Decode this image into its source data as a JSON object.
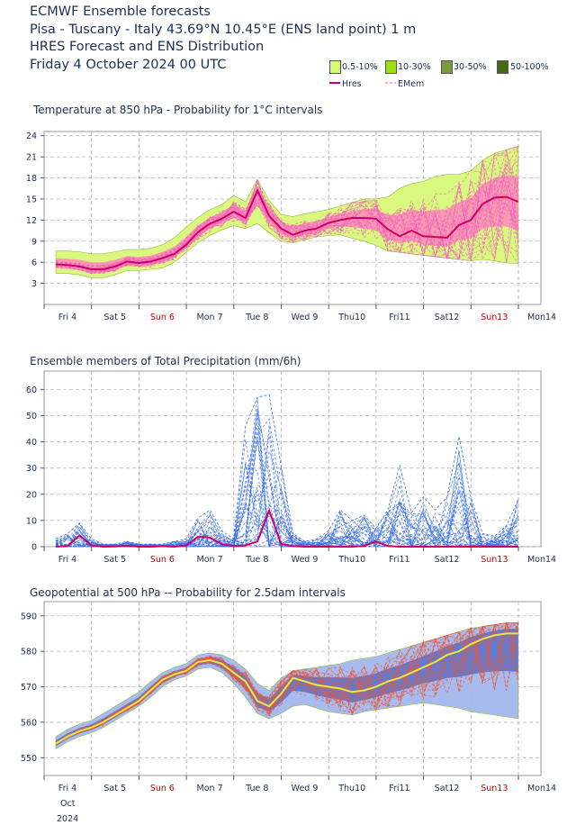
{
  "header": {
    "line1": "ECMWF Ensemble forecasts",
    "line2": "Pisa - Tuscany - Italy 43.69°N 10.45°E (ENS land point) 1 m",
    "line3": "HRES Forecast and ENS Distribution",
    "line4": "Friday  4 October 2024 00 UTC"
  },
  "legend": {
    "boxes": [
      {
        "label": "0.5-10%",
        "color": "#d9f77a"
      },
      {
        "label": "10-30%",
        "color": "#9ae010"
      },
      {
        "label": "30-50%",
        "color": "#7a9a3a"
      },
      {
        "label": "50-100%",
        "color": "#4a6a10"
      }
    ],
    "hres_label": "Hres",
    "emem_label": "EMem",
    "hres_color": "#cc0066",
    "emem_color": "#ff6a6a"
  },
  "x_axis": {
    "ticks": [
      "Fri 4",
      "Sat 5",
      "Sun 6",
      "Mon 7",
      "Tue 8",
      "Wed 9",
      "Thu10",
      "Fri11",
      "Sat12",
      "Sun13",
      "Mon14"
    ],
    "weekend_ticks": [
      "Sun 6",
      "Sun13"
    ],
    "weekend_color": "#cc0000",
    "month_label": "Oct",
    "year_label": "2024"
  },
  "chart_data": [
    {
      "type": "area",
      "title": "Temperature at 850 hPa - Probability for 1°C intervals",
      "ylim": [
        0,
        24.6
      ],
      "yticks": [
        3,
        6,
        9,
        12,
        15,
        18,
        21,
        24
      ],
      "grid": true,
      "colors": {
        "outer": "#d9f77a",
        "inner": "#ff88bb",
        "hres": "#cc0066",
        "members": "#ee66bb"
      },
      "x_days": [
        0,
        0.25,
        0.5,
        0.75,
        1,
        1.25,
        1.5,
        1.75,
        2,
        2.25,
        2.5,
        2.75,
        3,
        3.25,
        3.5,
        3.75,
        4,
        4.25,
        4.5,
        4.75,
        5,
        5.25,
        5.5,
        5.75,
        6,
        6.25,
        6.5,
        6.75,
        7,
        7.25,
        7.5,
        7.75,
        8,
        8.25,
        8.5,
        8.75,
        9,
        9.25,
        9.5,
        9.75
      ],
      "hres": [
        5.7,
        5.6,
        5.4,
        5.0,
        5.0,
        5.4,
        6.1,
        5.9,
        6.1,
        6.6,
        7.2,
        8.5,
        10.3,
        11.5,
        12.2,
        13.2,
        12.3,
        16.2,
        12.6,
        10.8,
        9.9,
        10.5,
        10.8,
        11.6,
        12.0,
        12.3,
        12.3,
        12.2,
        10.7,
        9.7,
        10.5,
        9.7,
        9.6,
        9.5,
        11.3,
        12.0,
        14.3,
        15.2,
        15.3,
        14.6
      ],
      "band_low": [
        4.4,
        4.4,
        4.2,
        3.8,
        3.8,
        4.2,
        4.8,
        4.8,
        5.0,
        5.2,
        6.0,
        7.4,
        8.8,
        9.8,
        10.6,
        11.2,
        10.8,
        11.5,
        10.2,
        9.0,
        8.8,
        9.2,
        9.6,
        9.8,
        9.9,
        9.4,
        9.0,
        8.4,
        7.6,
        7.4,
        7.2,
        7.0,
        6.8,
        6.6,
        6.4,
        6.2,
        6.4,
        6.2,
        5.9,
        5.8
      ],
      "band_high": [
        7.6,
        7.6,
        7.5,
        7.2,
        7.2,
        7.5,
        7.8,
        7.8,
        8.0,
        8.5,
        9.5,
        11.0,
        12.4,
        13.5,
        14.2,
        15.5,
        14.6,
        17.8,
        14.8,
        12.8,
        12.5,
        12.9,
        13.2,
        13.5,
        14.0,
        14.5,
        15.0,
        15.0,
        15.3,
        16.5,
        17.2,
        17.5,
        18.2,
        18.5,
        18.5,
        19.0,
        20.5,
        21.5,
        22.0,
        22.5
      ]
    },
    {
      "type": "line",
      "title": "Ensemble members of Total Precipitation (mm/6h)",
      "ylim": [
        0,
        67
      ],
      "yticks": [
        0,
        10,
        20,
        30,
        40,
        50,
        60
      ],
      "grid": true,
      "colors": {
        "hres": "#cc0066",
        "members": "#3a6ee8"
      },
      "x_days": [
        0,
        0.25,
        0.5,
        0.75,
        1,
        1.25,
        1.5,
        1.75,
        2,
        2.25,
        2.5,
        2.75,
        3,
        3.25,
        3.5,
        3.75,
        4,
        4.25,
        4.5,
        4.75,
        5,
        5.25,
        5.5,
        5.75,
        6,
        6.25,
        6.5,
        6.75,
        7,
        7.25,
        7.5,
        7.75,
        8,
        8.25,
        8.5,
        8.75,
        9,
        9.25,
        9.5,
        9.75
      ],
      "hres": [
        0.0,
        0.3,
        4.3,
        0.5,
        0.0,
        0.1,
        0.4,
        0.0,
        0.0,
        0.2,
        0.0,
        0.5,
        3.8,
        3.5,
        1.0,
        0.2,
        0.5,
        2.0,
        13.8,
        1.0,
        0.2,
        0.0,
        0.0,
        0.0,
        0.0,
        0.0,
        0.3,
        2.0,
        0.3,
        0.0,
        0.0,
        0.0,
        0.0,
        0.0,
        0.0,
        0.0,
        0.0,
        0.0,
        0.0,
        0.0
      ],
      "members_max": [
        3,
        5,
        9,
        3,
        1,
        1,
        2,
        1,
        1,
        1,
        2,
        3,
        11,
        14,
        6,
        3,
        46,
        57,
        58,
        31,
        5,
        2,
        3,
        6,
        14,
        10,
        12,
        7,
        14,
        31,
        13,
        19,
        14,
        19,
        42,
        19,
        5,
        4,
        8,
        18
      ]
    },
    {
      "type": "area",
      "title": "Geopotential at 500 hPa -- Probability for 2.5dam intervals",
      "ylim": [
        545,
        594
      ],
      "yticks": [
        550,
        560,
        570,
        580,
        590
      ],
      "grid": true,
      "colors": {
        "outer": "#a4b8ee",
        "inner": "#4a72d6",
        "hres": "#e8e840",
        "members": "#ee5533"
      },
      "x_days": [
        0,
        0.25,
        0.5,
        0.75,
        1,
        1.25,
        1.5,
        1.75,
        2,
        2.25,
        2.5,
        2.75,
        3,
        3.25,
        3.5,
        3.75,
        4,
        4.25,
        4.5,
        4.75,
        5,
        5.25,
        5.5,
        5.75,
        6,
        6.25,
        6.5,
        6.75,
        7,
        7.25,
        7.5,
        7.75,
        8,
        8.25,
        8.5,
        8.75,
        9,
        9.25,
        9.5,
        9.75
      ],
      "hres": [
        554.0,
        556.0,
        557.5,
        558.5,
        560.0,
        562.0,
        564.0,
        566.0,
        569.0,
        572.0,
        573.5,
        574.5,
        577.0,
        577.5,
        576.5,
        574.0,
        571.5,
        566.0,
        564.5,
        568.0,
        572.5,
        571.5,
        570.5,
        570.0,
        569.5,
        568.5,
        569.0,
        570.0,
        571.5,
        572.5,
        574.0,
        575.5,
        577.0,
        579.0,
        580.0,
        582.0,
        583.5,
        584.5,
        585.0,
        585.0
      ],
      "band_low": [
        552.5,
        554.5,
        556.0,
        557.0,
        558.5,
        560.5,
        562.5,
        564.5,
        567.0,
        570.0,
        572.0,
        573.0,
        575.0,
        575.5,
        574.0,
        571.0,
        567.0,
        562.5,
        561.0,
        562.5,
        564.5,
        565.0,
        564.0,
        563.0,
        562.5,
        562.0,
        563.0,
        563.5,
        564.0,
        564.5,
        565.0,
        565.5,
        565.0,
        564.5,
        564.0,
        563.0,
        562.5,
        562.0,
        561.5,
        561.0
      ],
      "band_high": [
        556.0,
        558.0,
        559.5,
        560.5,
        562.5,
        564.5,
        566.5,
        568.5,
        571.5,
        574.0,
        575.5,
        576.5,
        579.0,
        579.5,
        579.0,
        577.5,
        575.0,
        571.0,
        569.0,
        572.5,
        574.5,
        575.0,
        575.5,
        576.0,
        576.5,
        577.5,
        578.0,
        578.5,
        579.5,
        580.5,
        581.5,
        582.5,
        583.5,
        584.5,
        585.5,
        586.5,
        587.0,
        587.5,
        588.0,
        588.0
      ]
    }
  ]
}
